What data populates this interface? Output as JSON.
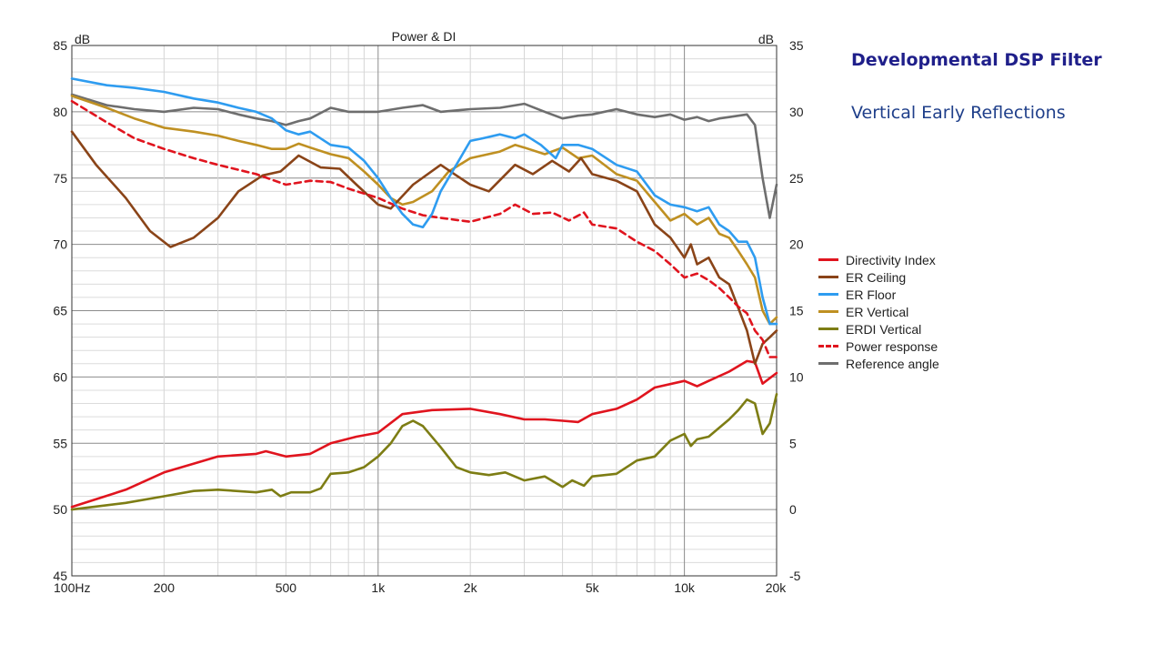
{
  "colors": {
    "Directivity Index": "#e0141e",
    "ER Ceiling": "#8a4418",
    "ER Floor": "#2e9cf0",
    "ER Vertical": "#bf9022",
    "ERDI Vertical": "#7d7d14",
    "Power response": "#e0141e",
    "Reference angle": "#6e6e6e",
    "title": "#1f1f8a",
    "subtitle": "#1f3f8a"
  },
  "side": {
    "title": "Developmental DSP Filter",
    "subtitle": "Vertical Early Reflections"
  },
  "chart_data": {
    "type": "line",
    "title": "Power & DI",
    "xscale": "log",
    "xlim": [
      100,
      20000
    ],
    "ylim": [
      45,
      85
    ],
    "y2lim": [
      -5,
      35
    ],
    "ylabel": "dB",
    "y2label": "dB",
    "x_ticks": [
      {
        "v": 100,
        "label": "100Hz"
      },
      {
        "v": 200,
        "label": "200"
      },
      {
        "v": 500,
        "label": "500"
      },
      {
        "v": 1000,
        "label": "1k"
      },
      {
        "v": 2000,
        "label": "2k"
      },
      {
        "v": 5000,
        "label": "5k"
      },
      {
        "v": 10000,
        "label": "10k"
      },
      {
        "v": 20000,
        "label": "20k"
      }
    ],
    "y_ticks": [
      "85",
      "80",
      "75",
      "70",
      "65",
      "60",
      "55",
      "50",
      "45"
    ],
    "y2_ticks": [
      "35",
      "30",
      "25",
      "20",
      "15",
      "10",
      "5",
      "0",
      "-5"
    ],
    "grid": true,
    "legend_position": "right",
    "series": [
      {
        "name": "Directivity Index",
        "axis": "right",
        "style": "solid",
        "points": [
          [
            100,
            0.2
          ],
          [
            150,
            1.5
          ],
          [
            200,
            2.8
          ],
          [
            300,
            4
          ],
          [
            400,
            4.2
          ],
          [
            430,
            4.4
          ],
          [
            500,
            4
          ],
          [
            600,
            4.2
          ],
          [
            700,
            5
          ],
          [
            850,
            5.5
          ],
          [
            1000,
            5.8
          ],
          [
            1200,
            7.2
          ],
          [
            1500,
            7.5
          ],
          [
            2000,
            7.6
          ],
          [
            2500,
            7.2
          ],
          [
            3000,
            6.8
          ],
          [
            3500,
            6.8
          ],
          [
            4000,
            6.7
          ],
          [
            4500,
            6.6
          ],
          [
            5000,
            7.2
          ],
          [
            6000,
            7.6
          ],
          [
            7000,
            8.3
          ],
          [
            8000,
            9.2
          ],
          [
            10000,
            9.7
          ],
          [
            11000,
            9.3
          ],
          [
            12000,
            9.7
          ],
          [
            14000,
            10.4
          ],
          [
            16000,
            11.2
          ],
          [
            17000,
            11.1
          ],
          [
            18000,
            9.5
          ],
          [
            20000,
            10.3
          ]
        ]
      },
      {
        "name": "ER Ceiling",
        "axis": "left",
        "style": "solid",
        "points": [
          [
            100,
            78.5
          ],
          [
            120,
            76
          ],
          [
            150,
            73.5
          ],
          [
            180,
            71
          ],
          [
            210,
            69.8
          ],
          [
            250,
            70.5
          ],
          [
            300,
            72
          ],
          [
            350,
            74
          ],
          [
            420,
            75.2
          ],
          [
            480,
            75.5
          ],
          [
            550,
            76.7
          ],
          [
            650,
            75.8
          ],
          [
            750,
            75.7
          ],
          [
            850,
            74.5
          ],
          [
            1000,
            73
          ],
          [
            1100,
            72.7
          ],
          [
            1300,
            74.5
          ],
          [
            1600,
            76
          ],
          [
            1800,
            75.2
          ],
          [
            2000,
            74.5
          ],
          [
            2300,
            74
          ],
          [
            2800,
            76
          ],
          [
            3200,
            75.3
          ],
          [
            3700,
            76.3
          ],
          [
            4200,
            75.5
          ],
          [
            4600,
            76.5
          ],
          [
            5000,
            75.3
          ],
          [
            6000,
            74.8
          ],
          [
            7000,
            74
          ],
          [
            8000,
            71.5
          ],
          [
            9000,
            70.5
          ],
          [
            10000,
            69
          ],
          [
            10500,
            70
          ],
          [
            11000,
            68.5
          ],
          [
            12000,
            69
          ],
          [
            13000,
            67.5
          ],
          [
            14000,
            67
          ],
          [
            16000,
            63.5
          ],
          [
            17000,
            61
          ],
          [
            18000,
            62.5
          ],
          [
            19000,
            63
          ],
          [
            20000,
            63.5
          ]
        ]
      },
      {
        "name": "ER Floor",
        "axis": "left",
        "style": "solid",
        "points": [
          [
            100,
            82.5
          ],
          [
            130,
            82
          ],
          [
            160,
            81.8
          ],
          [
            200,
            81.5
          ],
          [
            250,
            81
          ],
          [
            300,
            80.7
          ],
          [
            350,
            80.3
          ],
          [
            400,
            80
          ],
          [
            450,
            79.5
          ],
          [
            500,
            78.6
          ],
          [
            550,
            78.3
          ],
          [
            600,
            78.5
          ],
          [
            700,
            77.5
          ],
          [
            800,
            77.3
          ],
          [
            900,
            76.3
          ],
          [
            1000,
            75
          ],
          [
            1100,
            73.5
          ],
          [
            1200,
            72.3
          ],
          [
            1300,
            71.5
          ],
          [
            1400,
            71.3
          ],
          [
            1500,
            72.3
          ],
          [
            1600,
            74
          ],
          [
            1800,
            76
          ],
          [
            2000,
            77.8
          ],
          [
            2200,
            78
          ],
          [
            2500,
            78.3
          ],
          [
            2800,
            78
          ],
          [
            3000,
            78.3
          ],
          [
            3400,
            77.5
          ],
          [
            3800,
            76.5
          ],
          [
            4000,
            77.5
          ],
          [
            4500,
            77.5
          ],
          [
            5000,
            77.2
          ],
          [
            6000,
            76
          ],
          [
            7000,
            75.5
          ],
          [
            8000,
            73.7
          ],
          [
            9000,
            73
          ],
          [
            10000,
            72.8
          ],
          [
            11000,
            72.5
          ],
          [
            12000,
            72.8
          ],
          [
            13000,
            71.5
          ],
          [
            14000,
            71
          ],
          [
            15000,
            70.2
          ],
          [
            16000,
            70.2
          ],
          [
            17000,
            69
          ],
          [
            18000,
            66
          ],
          [
            19000,
            64
          ],
          [
            20000,
            64
          ]
        ]
      },
      {
        "name": "ER Vertical",
        "axis": "left",
        "style": "solid",
        "points": [
          [
            100,
            81.2
          ],
          [
            130,
            80.3
          ],
          [
            160,
            79.5
          ],
          [
            200,
            78.8
          ],
          [
            250,
            78.5
          ],
          [
            300,
            78.2
          ],
          [
            350,
            77.8
          ],
          [
            400,
            77.5
          ],
          [
            450,
            77.2
          ],
          [
            500,
            77.2
          ],
          [
            550,
            77.6
          ],
          [
            600,
            77.3
          ],
          [
            700,
            76.8
          ],
          [
            800,
            76.5
          ],
          [
            900,
            75.5
          ],
          [
            1000,
            74.5
          ],
          [
            1100,
            73.5
          ],
          [
            1200,
            73
          ],
          [
            1300,
            73.2
          ],
          [
            1500,
            74
          ],
          [
            1700,
            75.5
          ],
          [
            2000,
            76.5
          ],
          [
            2500,
            77
          ],
          [
            2800,
            77.5
          ],
          [
            3000,
            77.3
          ],
          [
            3500,
            76.8
          ],
          [
            4000,
            77.3
          ],
          [
            4500,
            76.5
          ],
          [
            5000,
            76.7
          ],
          [
            6000,
            75.3
          ],
          [
            7000,
            74.8
          ],
          [
            8000,
            73.2
          ],
          [
            9000,
            71.8
          ],
          [
            10000,
            72.3
          ],
          [
            11000,
            71.5
          ],
          [
            12000,
            72
          ],
          [
            13000,
            70.8
          ],
          [
            14000,
            70.5
          ],
          [
            15000,
            69.5
          ],
          [
            16000,
            68.5
          ],
          [
            17000,
            67.5
          ],
          [
            18000,
            65
          ],
          [
            19000,
            64
          ],
          [
            20000,
            64.5
          ]
        ]
      },
      {
        "name": "ERDI Vertical",
        "axis": "right",
        "style": "solid",
        "points": [
          [
            100,
            0
          ],
          [
            150,
            0.5
          ],
          [
            200,
            1
          ],
          [
            250,
            1.4
          ],
          [
            300,
            1.5
          ],
          [
            400,
            1.3
          ],
          [
            450,
            1.5
          ],
          [
            480,
            1
          ],
          [
            520,
            1.3
          ],
          [
            600,
            1.3
          ],
          [
            650,
            1.6
          ],
          [
            700,
            2.7
          ],
          [
            800,
            2.8
          ],
          [
            900,
            3.2
          ],
          [
            1000,
            4
          ],
          [
            1100,
            5
          ],
          [
            1200,
            6.3
          ],
          [
            1300,
            6.7
          ],
          [
            1400,
            6.3
          ],
          [
            1600,
            4.7
          ],
          [
            1800,
            3.2
          ],
          [
            2000,
            2.8
          ],
          [
            2300,
            2.6
          ],
          [
            2600,
            2.8
          ],
          [
            3000,
            2.2
          ],
          [
            3500,
            2.5
          ],
          [
            4000,
            1.7
          ],
          [
            4300,
            2.2
          ],
          [
            4700,
            1.8
          ],
          [
            5000,
            2.5
          ],
          [
            6000,
            2.7
          ],
          [
            7000,
            3.7
          ],
          [
            8000,
            4
          ],
          [
            9000,
            5.2
          ],
          [
            10000,
            5.7
          ],
          [
            10500,
            4.8
          ],
          [
            11000,
            5.3
          ],
          [
            12000,
            5.5
          ],
          [
            14000,
            6.8
          ],
          [
            15000,
            7.5
          ],
          [
            16000,
            8.3
          ],
          [
            17000,
            8
          ],
          [
            18000,
            5.7
          ],
          [
            19000,
            6.5
          ],
          [
            20000,
            8.7
          ]
        ]
      },
      {
        "name": "Power response",
        "axis": "left",
        "style": "dashed",
        "points": [
          [
            100,
            80.8
          ],
          [
            130,
            79.2
          ],
          [
            160,
            78
          ],
          [
            200,
            77.2
          ],
          [
            250,
            76.5
          ],
          [
            300,
            76
          ],
          [
            400,
            75.3
          ],
          [
            500,
            74.5
          ],
          [
            600,
            74.8
          ],
          [
            700,
            74.7
          ],
          [
            800,
            74.2
          ],
          [
            1000,
            73.5
          ],
          [
            1200,
            72.7
          ],
          [
            1400,
            72.2
          ],
          [
            1600,
            72
          ],
          [
            2000,
            71.7
          ],
          [
            2500,
            72.3
          ],
          [
            2800,
            73
          ],
          [
            3200,
            72.3
          ],
          [
            3700,
            72.4
          ],
          [
            4200,
            71.8
          ],
          [
            4700,
            72.4
          ],
          [
            5000,
            71.5
          ],
          [
            6000,
            71.2
          ],
          [
            7000,
            70.2
          ],
          [
            8000,
            69.5
          ],
          [
            9000,
            68.5
          ],
          [
            10000,
            67.5
          ],
          [
            11000,
            67.8
          ],
          [
            12000,
            67.3
          ],
          [
            13000,
            66.7
          ],
          [
            14000,
            66
          ],
          [
            15000,
            65.3
          ],
          [
            16000,
            64.8
          ],
          [
            17000,
            63.5
          ],
          [
            18000,
            62.8
          ],
          [
            19000,
            61.5
          ],
          [
            20000,
            61.5
          ]
        ]
      },
      {
        "name": "Reference angle",
        "axis": "right",
        "style": "solid",
        "points": [
          [
            100,
            31.3
          ],
          [
            130,
            30.5
          ],
          [
            160,
            30.2
          ],
          [
            200,
            30
          ],
          [
            250,
            30.3
          ],
          [
            300,
            30.2
          ],
          [
            350,
            29.8
          ],
          [
            400,
            29.5
          ],
          [
            450,
            29.3
          ],
          [
            500,
            29
          ],
          [
            550,
            29.3
          ],
          [
            600,
            29.5
          ],
          [
            700,
            30.3
          ],
          [
            800,
            30
          ],
          [
            1000,
            30
          ],
          [
            1200,
            30.3
          ],
          [
            1400,
            30.5
          ],
          [
            1600,
            30
          ],
          [
            2000,
            30.2
          ],
          [
            2500,
            30.3
          ],
          [
            3000,
            30.6
          ],
          [
            3500,
            30
          ],
          [
            4000,
            29.5
          ],
          [
            4500,
            29.7
          ],
          [
            5000,
            29.8
          ],
          [
            6000,
            30.2
          ],
          [
            7000,
            29.8
          ],
          [
            8000,
            29.6
          ],
          [
            9000,
            29.8
          ],
          [
            10000,
            29.4
          ],
          [
            11000,
            29.6
          ],
          [
            12000,
            29.3
          ],
          [
            13000,
            29.5
          ],
          [
            14000,
            29.6
          ],
          [
            15000,
            29.7
          ],
          [
            16000,
            29.8
          ],
          [
            17000,
            29
          ],
          [
            18000,
            25
          ],
          [
            19000,
            22
          ],
          [
            20000,
            24.5
          ]
        ]
      }
    ]
  }
}
